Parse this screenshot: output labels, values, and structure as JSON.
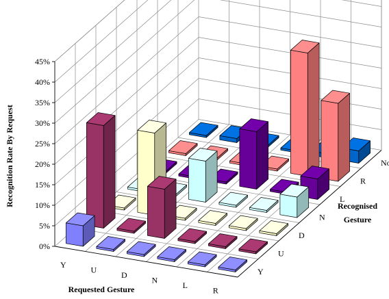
{
  "chart_data": {
    "type": "bar3d",
    "title": "",
    "xlabel": "Requested Gesture",
    "ylabel": "Recognised Gesture",
    "zlabel": "Recognition Rate By Request",
    "x_categories": [
      "Y",
      "U",
      "D",
      "N",
      "L",
      "R"
    ],
    "y_categories": [
      "Y",
      "U",
      "D",
      "N",
      "L",
      "R",
      "Not"
    ],
    "z_ticks": [
      "0%",
      "5%",
      "10%",
      "15%",
      "20%",
      "25%",
      "30%",
      "35%",
      "40%",
      "45%"
    ],
    "zlim": [
      0,
      45
    ],
    "unit": "%",
    "grid": true,
    "row_colors": [
      "#8080ff",
      "#993366",
      "#ffffcc",
      "#ccffff",
      "#660099",
      "#ff8080",
      "#0066cc"
    ],
    "series": [
      {
        "values": [
          5,
          0.5,
          0.5,
          0.5,
          0.5,
          0.5
        ]
      },
      {
        "values": [
          25,
          0.5,
          12,
          0.5,
          0.5,
          0.5
        ]
      },
      {
        "values": [
          0.5,
          20,
          0.5,
          0.5,
          0.5,
          0.5
        ]
      },
      {
        "values": [
          0.5,
          0.5,
          10,
          0.5,
          0.5,
          5
        ]
      },
      {
        "values": [
          0.5,
          0.5,
          0.5,
          14,
          0.5,
          5
        ]
      },
      {
        "values": [
          0.5,
          0.5,
          0.5,
          0.5,
          30,
          19
        ]
      },
      {
        "values": [
          0.5,
          1,
          0.5,
          0.5,
          1,
          3
        ]
      }
    ]
  }
}
